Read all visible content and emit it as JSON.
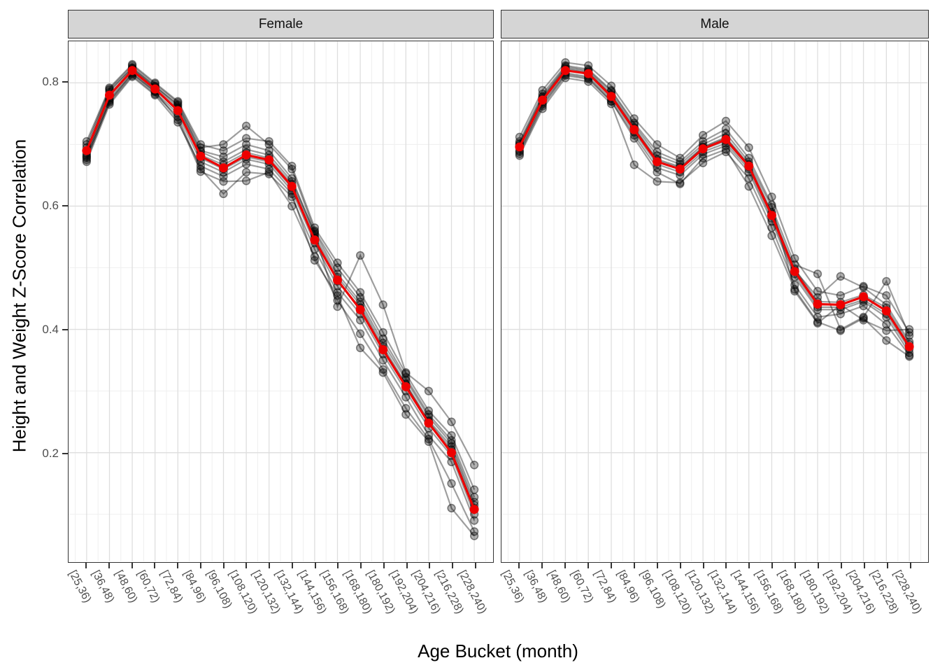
{
  "chart_data": {
    "type": "line",
    "title": "",
    "xlabel": "Age Bucket (month)",
    "ylabel": "Height and Weight Z-Score Correlation",
    "categories": [
      "[25,36)",
      "[36,48)",
      "[48,60)",
      "[60,72)",
      "[72,84)",
      "[84,96)",
      "[96,108)",
      "[108,120)",
      "[120,132)",
      "[132,144)",
      "[144,156)",
      "[156,168)",
      "[168,180)",
      "[180,192)",
      "[192,204)",
      "[204,216)",
      "[216,228)",
      "[228,240)"
    ],
    "y_tick_values": [
      0.2,
      0.4,
      0.6,
      0.8
    ],
    "y_minor_values": [
      0.1,
      0.3,
      0.5,
      0.7
    ],
    "ylim": [
      0.024,
      0.867
    ],
    "grid": "major+minor, light gray on white, black panel border (faceted theme)",
    "legend": "none",
    "colors": {
      "mean_line": "#ee0000",
      "individual_line": "rgba(0,0,0,0.38)",
      "individual_point_fill": "rgba(0,0,0,0.30)",
      "individual_point_stroke": "rgba(0,0,0,0.45)",
      "grid_major": "#dedede",
      "grid_minor": "#f0f0f0",
      "strip_fill": "#d5d5d5",
      "axis_text": "#4d4d4d"
    },
    "facets": [
      {
        "label": "Female",
        "mean_series": {
          "name": "mean",
          "values": [
            0.69,
            0.78,
            0.82,
            0.79,
            0.755,
            0.681,
            0.662,
            0.683,
            0.675,
            0.632,
            0.545,
            0.48,
            0.432,
            0.367,
            0.307,
            0.248,
            0.2,
            0.108
          ]
        },
        "individual_series": [
          {
            "name": "series-1",
            "values": [
              0.675,
              0.77,
              0.815,
              0.785,
              0.75,
              0.672,
              0.655,
              0.676,
              0.668,
              0.625,
              0.54,
              0.47,
              0.425,
              0.36,
              0.3,
              0.24,
              0.195,
              0.1
            ]
          },
          {
            "name": "series-2",
            "values": [
              0.68,
              0.775,
              0.818,
              0.788,
              0.757,
              0.678,
              0.66,
              0.68,
              0.672,
              0.63,
              0.548,
              0.478,
              0.435,
              0.368,
              0.31,
              0.25,
              0.205,
              0.11
            ]
          },
          {
            "name": "series-3",
            "values": [
              0.685,
              0.78,
              0.822,
              0.792,
              0.76,
              0.683,
              0.667,
              0.687,
              0.678,
              0.636,
              0.552,
              0.485,
              0.44,
              0.372,
              0.312,
              0.252,
              0.21,
              0.115
            ]
          },
          {
            "name": "series-4",
            "values": [
              0.69,
              0.785,
              0.825,
              0.795,
              0.763,
              0.688,
              0.672,
              0.692,
              0.683,
              0.64,
              0.558,
              0.49,
              0.445,
              0.378,
              0.318,
              0.258,
              0.215,
              0.12
            ]
          },
          {
            "name": "series-5",
            "values": [
              0.7,
              0.79,
              0.828,
              0.798,
              0.768,
              0.695,
              0.7,
              0.73,
              0.7,
              0.66,
              0.56,
              0.5,
              0.452,
              0.385,
              0.322,
              0.262,
              0.22,
              0.128
            ]
          },
          {
            "name": "series-6",
            "values": [
              0.678,
              0.768,
              0.812,
              0.782,
              0.745,
              0.66,
              0.62,
              0.655,
              0.652,
              0.615,
              0.53,
              0.46,
              0.415,
              0.35,
              0.29,
              0.228,
              0.185,
              0.09
            ]
          },
          {
            "name": "series-7",
            "values": [
              0.682,
              0.772,
              0.815,
              0.786,
              0.74,
              0.656,
              0.64,
              0.641,
              0.655,
              0.6,
              0.518,
              0.447,
              0.393,
              0.335,
              0.272,
              0.222,
              0.15,
              0.072
            ]
          },
          {
            "name": "series-8",
            "values": [
              0.695,
              0.788,
              0.824,
              0.794,
              0.765,
              0.69,
              0.68,
              0.7,
              0.69,
              0.645,
              0.555,
              0.437,
              0.52,
              0.44,
              0.33,
              0.3,
              0.25,
              0.18
            ]
          },
          {
            "name": "series-9",
            "values": [
              0.672,
              0.765,
              0.81,
              0.78,
              0.736,
              0.665,
              0.648,
              0.668,
              0.66,
              0.62,
              0.512,
              0.455,
              0.37,
              0.33,
              0.262,
              0.218,
              0.11,
              0.065
            ]
          },
          {
            "name": "series-10",
            "values": [
              0.705,
              0.792,
              0.83,
              0.8,
              0.77,
              0.7,
              0.69,
              0.71,
              0.705,
              0.665,
              0.565,
              0.508,
              0.46,
              0.395,
              0.328,
              0.268,
              0.228,
              0.14
            ]
          }
        ]
      },
      {
        "label": "Male",
        "mean_series": {
          "name": "mean",
          "values": [
            0.696,
            0.772,
            0.82,
            0.815,
            0.778,
            0.724,
            0.672,
            0.66,
            0.693,
            0.708,
            0.665,
            0.585,
            0.494,
            0.441,
            0.44,
            0.453,
            0.43,
            0.372
          ]
        },
        "individual_series": [
          {
            "name": "series-1",
            "values": [
              0.685,
              0.762,
              0.812,
              0.806,
              0.77,
              0.715,
              0.662,
              0.65,
              0.684,
              0.698,
              0.655,
              0.575,
              0.485,
              0.432,
              0.432,
              0.445,
              0.42,
              0.362
            ]
          },
          {
            "name": "series-2",
            "values": [
              0.69,
              0.768,
              0.816,
              0.81,
              0.774,
              0.72,
              0.668,
              0.655,
              0.688,
              0.702,
              0.66,
              0.58,
              0.49,
              0.436,
              0.436,
              0.448,
              0.425,
              0.368
            ]
          },
          {
            "name": "series-3",
            "values": [
              0.695,
              0.772,
              0.82,
              0.814,
              0.778,
              0.724,
              0.672,
              0.66,
              0.692,
              0.706,
              0.664,
              0.585,
              0.494,
              0.44,
              0.44,
              0.452,
              0.43,
              0.372
            ]
          },
          {
            "name": "series-4",
            "values": [
              0.7,
              0.776,
              0.824,
              0.818,
              0.782,
              0.728,
              0.676,
              0.664,
              0.696,
              0.712,
              0.668,
              0.59,
              0.498,
              0.445,
              0.444,
              0.456,
              0.435,
              0.376
            ]
          },
          {
            "name": "series-5",
            "values": [
              0.712,
              0.788,
              0.833,
              0.828,
              0.795,
              0.742,
              0.7,
              0.678,
              0.715,
              0.738,
              0.695,
              0.615,
              0.515,
              0.462,
              0.455,
              0.47,
              0.455,
              0.395
            ]
          },
          {
            "name": "series-6",
            "values": [
              0.682,
              0.758,
              0.808,
              0.802,
              0.766,
              0.667,
              0.64,
              0.638,
              0.67,
              0.688,
              0.645,
              0.565,
              0.472,
              0.42,
              0.425,
              0.438,
              0.408,
              0.358
            ]
          },
          {
            "name": "series-7",
            "values": [
              0.688,
              0.765,
              0.814,
              0.808,
              0.77,
              0.71,
              0.655,
              0.636,
              0.678,
              0.692,
              0.632,
              0.552,
              0.465,
              0.412,
              0.398,
              0.418,
              0.382,
              0.356
            ]
          },
          {
            "name": "series-8",
            "values": [
              0.702,
              0.778,
              0.826,
              0.82,
              0.786,
              0.732,
              0.682,
              0.668,
              0.7,
              0.718,
              0.672,
              0.598,
              0.505,
              0.49,
              0.4,
              0.42,
              0.478,
              0.39
            ]
          },
          {
            "name": "series-9",
            "values": [
              0.698,
              0.774,
              0.822,
              0.816,
              0.78,
              0.726,
              0.674,
              0.662,
              0.695,
              0.71,
              0.666,
              0.588,
              0.496,
              0.452,
              0.486,
              0.468,
              0.44,
              0.38
            ]
          },
          {
            "name": "series-10",
            "values": [
              0.705,
              0.782,
              0.828,
              0.822,
              0.788,
              0.735,
              0.688,
              0.672,
              0.705,
              0.725,
              0.678,
              0.602,
              0.462,
              0.41,
              0.44,
              0.415,
              0.398,
              0.4
            ]
          }
        ]
      }
    ]
  },
  "axis_tick_labels": {
    "y": [
      "0.2",
      "0.4",
      "0.6",
      "0.8"
    ]
  }
}
